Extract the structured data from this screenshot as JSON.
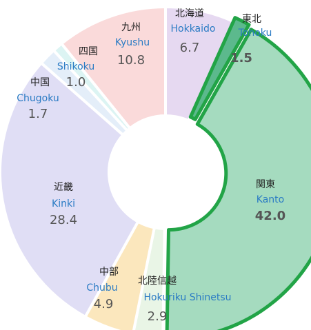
{
  "chart_data": {
    "type": "donut",
    "categories": [
      "Hokkaido",
      "Tohoku",
      "Kanto",
      "Hokuriku Shinetsu",
      "Chubu",
      "Kinki",
      "Chugoku",
      "Shikoku",
      "Kyushu"
    ],
    "categories_ja": [
      "北海道",
      "東北",
      "関東",
      "北陸信越",
      "中部",
      "近畿",
      "中国",
      "四国",
      "九州"
    ],
    "values": [
      6.7,
      1.5,
      42.0,
      2.9,
      4.9,
      28.4,
      1.7,
      1.0,
      10.8
    ],
    "value_labels": [
      "6.7",
      "1.5",
      "42.0",
      "2.9",
      "4.9",
      "28.4",
      "1.7",
      "1.0",
      "10.8"
    ],
    "colors": [
      "#e6d9f1",
      "#5cb98d",
      "#a5dbbf",
      "#e9f5e6",
      "#fbe7bd",
      "#e0def5",
      "#e4eef9",
      "#dcf4f3",
      "#fadada"
    ],
    "highlight_color": "#22a447"
  }
}
